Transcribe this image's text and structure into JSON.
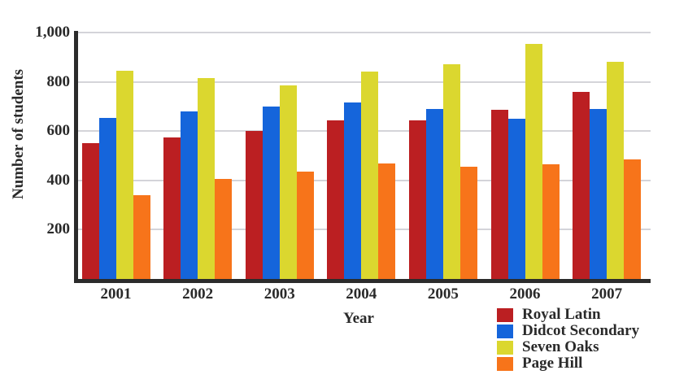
{
  "chart_data": {
    "type": "bar",
    "title": "",
    "xlabel": "Year",
    "ylabel": "Number of students",
    "ylim": [
      0,
      1000
    ],
    "grid": true,
    "legend_position": "bottom-right",
    "yticks": [
      {
        "value": 1000,
        "label": "1,000"
      },
      {
        "value": 800,
        "label": "800"
      },
      {
        "value": 600,
        "label": "600"
      },
      {
        "value": 400,
        "label": "400"
      },
      {
        "value": 200,
        "label": "200"
      }
    ],
    "categories": [
      "2001",
      "2002",
      "2003",
      "2004",
      "2005",
      "2006",
      "2007"
    ],
    "series": [
      {
        "name": "Royal Latin",
        "color": "#bb1f22",
        "values": [
          550,
          575,
          600,
          645,
          645,
          685,
          760
        ]
      },
      {
        "name": "Didcot Secondary",
        "color": "#1565db",
        "values": [
          655,
          680,
          700,
          715,
          690,
          650,
          690
        ]
      },
      {
        "name": "Seven Oaks",
        "color": "#dbd72f",
        "values": [
          845,
          815,
          785,
          840,
          870,
          955,
          880
        ]
      },
      {
        "name": "Page Hill",
        "color": "#f7741a",
        "values": [
          340,
          405,
          435,
          470,
          455,
          465,
          485
        ]
      }
    ]
  },
  "colors": {
    "axis": "#2b2b2b",
    "gridline": "#d4d4d9",
    "text": "#2a2a2a",
    "background": "#ffffff"
  }
}
